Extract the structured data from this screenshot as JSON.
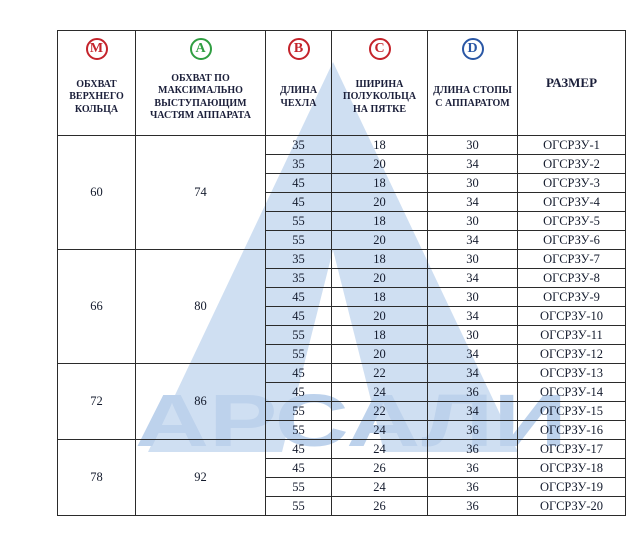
{
  "page": {
    "background": "#ffffff"
  },
  "watermark": {
    "text": "АРСАЛИ",
    "triangle_color": "#cfdff2",
    "notch_color": "#ffffff",
    "text_color": "#bdd2ec"
  },
  "table": {
    "header": {
      "m": {
        "letter": "M",
        "color": "#c4232b",
        "label": "ОБХВАТ ВЕРХНЕГО КОЛЬЦА"
      },
      "a": {
        "letter": "A",
        "color": "#2f9e41",
        "label": "ОБХВАТ ПО МАКСИМАЛЬНО ВЫСТУПАЮЩИМ ЧАСТЯМ АППАРАТА"
      },
      "b": {
        "letter": "B",
        "color": "#c4232b",
        "label": "ДЛИНА ЧЕХЛА"
      },
      "c": {
        "letter": "C",
        "color": "#c4232b",
        "label": "ШИРИНА ПОЛУКОЛЬЦА НА ПЯТКЕ"
      },
      "d": {
        "letter": "D",
        "color": "#2a57a5",
        "label": "ДЛИНА СТОПЫ С АППАРАТОМ"
      },
      "size": {
        "label": "РАЗМЕР"
      }
    },
    "groups": [
      {
        "m": "60",
        "a": "74",
        "rows": [
          [
            "35",
            "18",
            "30",
            "ОГСРЗУ-1"
          ],
          [
            "35",
            "20",
            "34",
            "ОГСРЗУ-2"
          ],
          [
            "45",
            "18",
            "30",
            "ОГСРЗУ-3"
          ],
          [
            "45",
            "20",
            "34",
            "ОГСРЗУ-4"
          ],
          [
            "55",
            "18",
            "30",
            "ОГСРЗУ-5"
          ],
          [
            "55",
            "20",
            "34",
            "ОГСРЗУ-6"
          ]
        ]
      },
      {
        "m": "66",
        "a": "80",
        "rows": [
          [
            "35",
            "18",
            "30",
            "ОГСРЗУ-7"
          ],
          [
            "35",
            "20",
            "34",
            "ОГСРЗУ-8"
          ],
          [
            "45",
            "18",
            "30",
            "ОГСРЗУ-9"
          ],
          [
            "45",
            "20",
            "34",
            "ОГСРЗУ-10"
          ],
          [
            "55",
            "18",
            "30",
            "ОГСРЗУ-11"
          ],
          [
            "55",
            "20",
            "34",
            "ОГСРЗУ-12"
          ]
        ]
      },
      {
        "m": "72",
        "a": "86",
        "rows": [
          [
            "45",
            "22",
            "34",
            "ОГСРЗУ-13"
          ],
          [
            "45",
            "24",
            "36",
            "ОГСРЗУ-14"
          ],
          [
            "55",
            "22",
            "34",
            "ОГСРЗУ-15"
          ],
          [
            "55",
            "24",
            "36",
            "ОГСРЗУ-16"
          ]
        ]
      },
      {
        "m": "78",
        "a": "92",
        "rows": [
          [
            "45",
            "24",
            "36",
            "ОГСРЗУ-17"
          ],
          [
            "45",
            "26",
            "36",
            "ОГСРЗУ-18"
          ],
          [
            "55",
            "24",
            "36",
            "ОГСРЗУ-19"
          ],
          [
            "55",
            "26",
            "36",
            "ОГСРЗУ-20"
          ]
        ]
      }
    ]
  }
}
